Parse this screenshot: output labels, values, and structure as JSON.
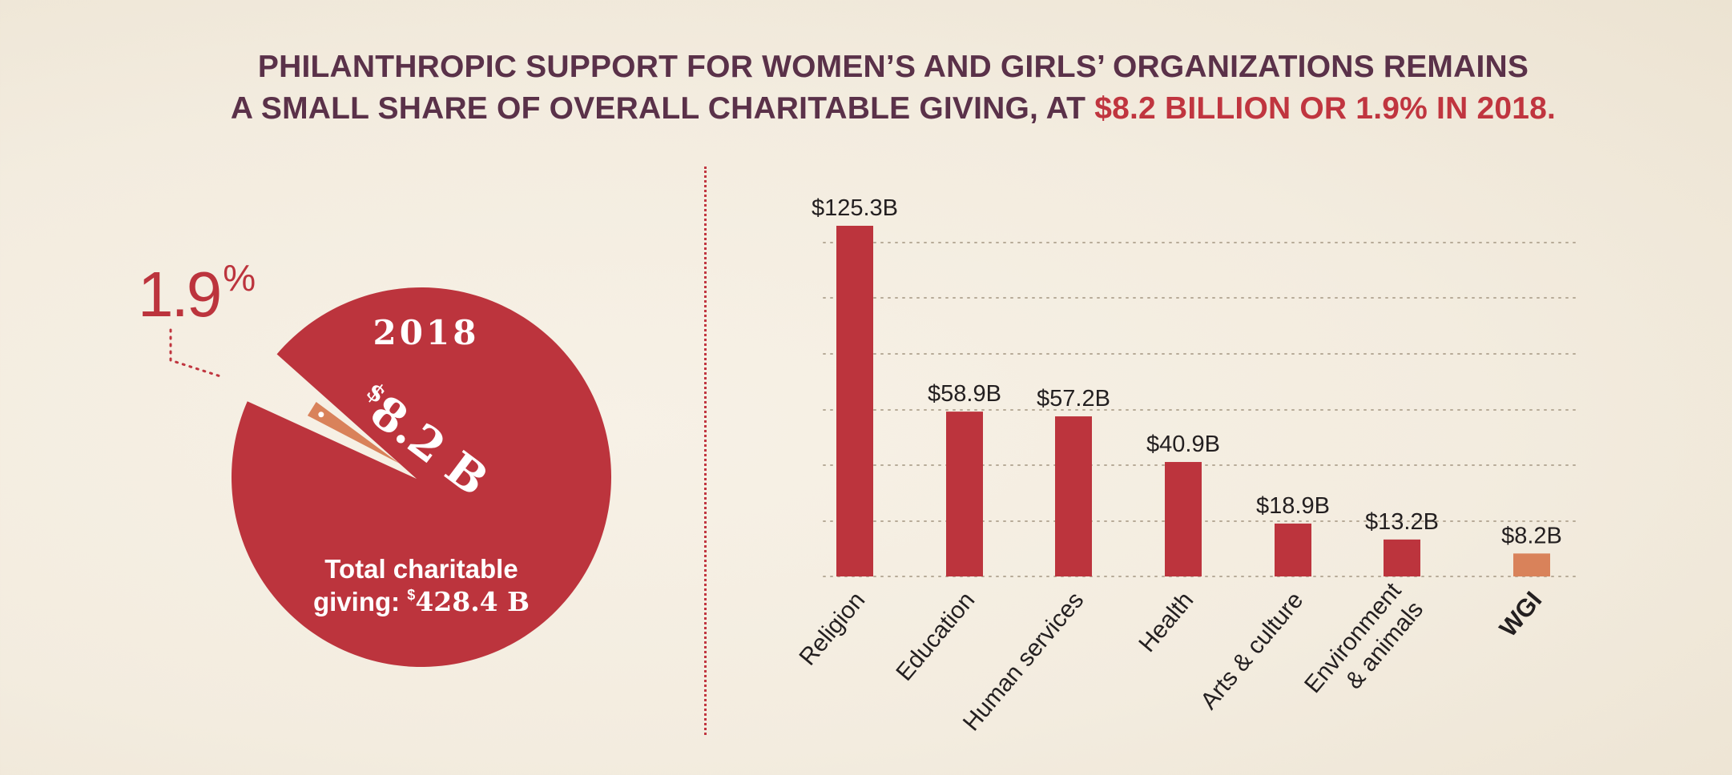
{
  "title": {
    "line1": "PHILANTHROPIC SUPPORT FOR WOMEN’S AND GIRLS’ ORGANIZATIONS REMAINS",
    "line2_prefix": "A SMALL SHARE OF OVERALL CHARITABLE GIVING, AT ",
    "line2_highlight": "$8.2 BILLION OR 1.9% IN 2018."
  },
  "pie": {
    "year": "2018",
    "share_number": "1.9",
    "share_unit": "%",
    "share_fraction": 0.019,
    "slice_currency": "$",
    "slice_amount": "8.2 B",
    "total_line1": "Total charitable",
    "total_line2_prefix": "giving: ",
    "total_currency": "$",
    "total_amount": "428.4 B"
  },
  "colors": {
    "primary_red": "#bc343d",
    "wgi_orange": "#d9825a",
    "title_purple": "#5a3149",
    "accent_red": "#c0353f",
    "label_dark": "#231f20"
  },
  "chart_data": {
    "type": "bar",
    "title": "",
    "xlabel": "",
    "ylabel": "",
    "categories": [
      "Religion",
      "Education",
      "Human services",
      "Health",
      "Arts & culture",
      "Environment\n& animals",
      "WGI"
    ],
    "values": [
      125.3,
      58.9,
      57.2,
      40.9,
      18.9,
      13.2,
      8.2
    ],
    "value_labels": [
      "$125.3B",
      "$58.9B",
      "$57.2B",
      "$40.9B",
      "$18.9B",
      "$13.2B",
      "$8.2B"
    ],
    "highlight_index": 6,
    "ylim": [
      0,
      125.3
    ],
    "grid": true
  }
}
